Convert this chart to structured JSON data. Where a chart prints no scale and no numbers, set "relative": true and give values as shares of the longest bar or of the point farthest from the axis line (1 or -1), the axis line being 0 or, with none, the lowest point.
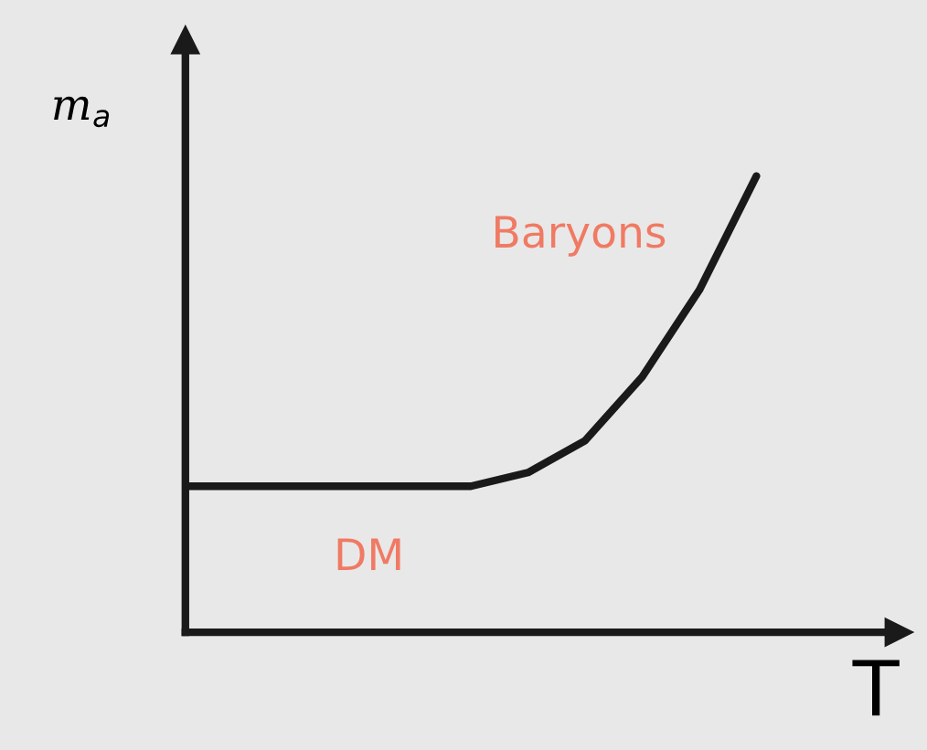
{
  "chart_data": {
    "type": "line",
    "relative": true,
    "xlabel": "T",
    "ylabel": "m$_{a}$",
    "categories": [
      null,
      null,
      null,
      null,
      null,
      null,
      null,
      null,
      null,
      null,
      null
    ],
    "series": [
      {
        "color": "#1a1a1a",
        "values": [
          0.32,
          0.32,
          0.32,
          0.32,
          0.32,
          0.32,
          0.35,
          0.42,
          0.56,
          0.75,
          1.0
        ]
      }
    ],
    "annotations": [
      "Baryons",
      "DM"
    ],
    "marker": "none",
    "line_style": "solid"
  }
}
